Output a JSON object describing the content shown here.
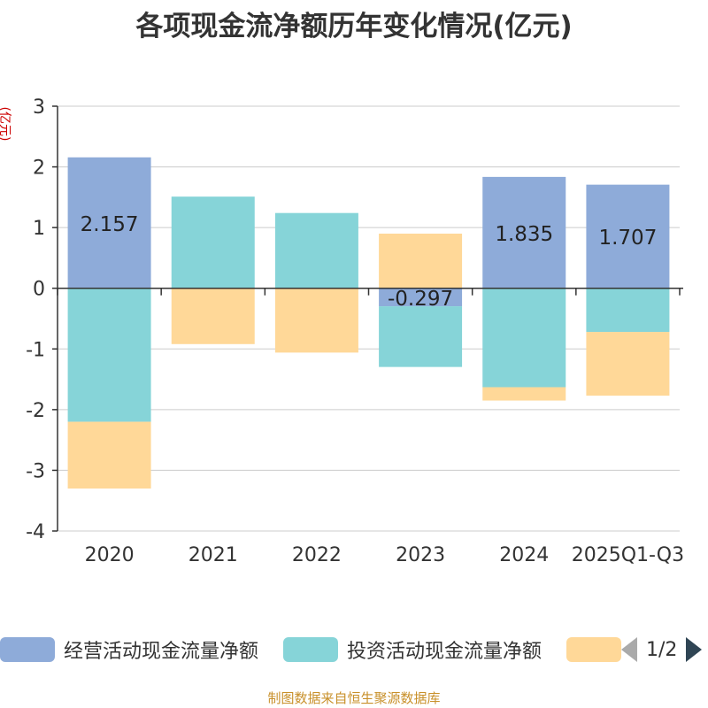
{
  "title": "各项现金流净额历年变化情况(亿元)",
  "source_text": "制图数据来自恒生聚源数据库",
  "legend": {
    "items": [
      {
        "label": "经营活动现金流量净额",
        "color": "#8eabd9"
      },
      {
        "label": "投资活动现金流量净额",
        "color": "#86d4d8"
      },
      {
        "label": "",
        "color": "#ffd898"
      }
    ],
    "pager_text": "1/2"
  },
  "chart_data": {
    "type": "bar",
    "stacked": true,
    "title": "各项现金流净额历年变化情况(亿元)",
    "ylabel": "(亿元)",
    "xlabel": "",
    "categories": [
      "2020",
      "2021",
      "2022",
      "2023",
      "2024",
      "2025Q1-Q3"
    ],
    "ylim": [
      -4,
      3
    ],
    "yticks": [
      -4,
      -3,
      -2,
      -1,
      0,
      1,
      2,
      3
    ],
    "grid": true,
    "series": [
      {
        "name": "经营活动现金流量净额",
        "color": "#8eabd9",
        "values": [
          2.157,
          0.0,
          0.0,
          -0.297,
          1.835,
          1.707
        ],
        "labels": [
          "2.157",
          "",
          "",
          "-0.297",
          "1.835",
          "1.707"
        ]
      },
      {
        "name": "投资活动现金流量净额",
        "color": "#86d4d8",
        "values": [
          -2.2,
          1.51,
          1.24,
          -1.0,
          -1.63,
          -0.72
        ],
        "labels": []
      },
      {
        "name": "",
        "color": "#ffd898",
        "values": [
          -1.1,
          -0.92,
          -1.06,
          0.9,
          -0.22,
          -1.05
        ],
        "labels": []
      }
    ]
  }
}
